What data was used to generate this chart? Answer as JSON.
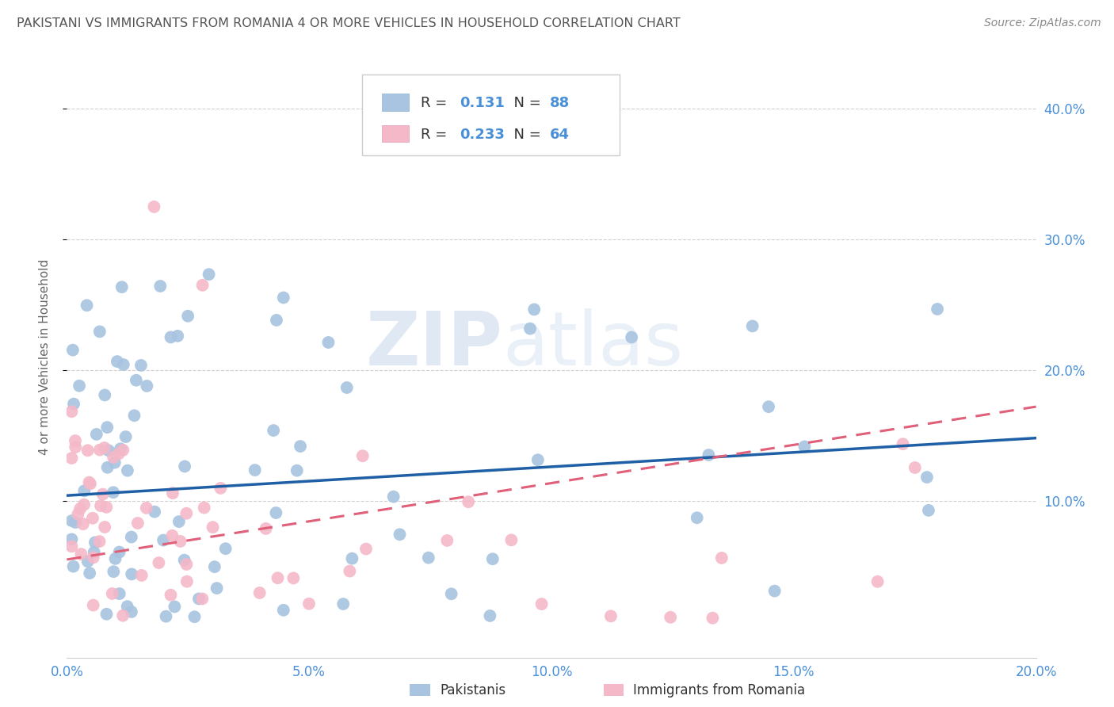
{
  "title": "PAKISTANI VS IMMIGRANTS FROM ROMANIA 4 OR MORE VEHICLES IN HOUSEHOLD CORRELATION CHART",
  "source": "Source: ZipAtlas.com",
  "ylabel": "4 or more Vehicles in Household",
  "y_tick_vals": [
    0.1,
    0.2,
    0.3,
    0.4
  ],
  "x_lim": [
    0.0,
    0.2
  ],
  "y_lim": [
    -0.02,
    0.44
  ],
  "pakistani_color": "#a8c4e0",
  "romania_color": "#f4b8c8",
  "line_pakistani": "#1f5fa6",
  "line_romania": "#e0607a",
  "R_pakistani": 0.131,
  "N_pakistani": 88,
  "R_romania": 0.233,
  "N_romania": 64,
  "legend_label_1": "Pakistanis",
  "legend_label_2": "Immigrants from Romania",
  "watermark_zip": "ZIP",
  "watermark_atlas": "atlas",
  "title_color": "#555555",
  "source_color": "#888888",
  "tick_color": "#4a90d9",
  "grid_color": "#d0d0d0",
  "ylabel_color": "#666666"
}
